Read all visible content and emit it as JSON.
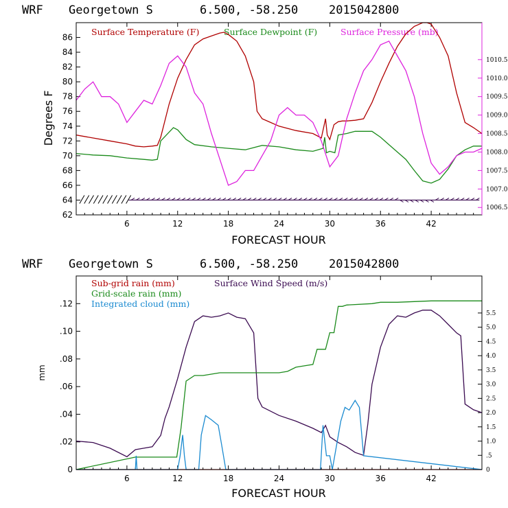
{
  "chart_data": [
    {
      "type": "line",
      "header": {
        "model": "WRF",
        "station": "Georgetown S",
        "coords": "6.500, -58.250",
        "run": "2015042800"
      },
      "xlabel": "FORECAST HOUR",
      "ylabel": "Degrees F",
      "xlim": [
        0,
        48
      ],
      "ylim": [
        62,
        88
      ],
      "y2lim": [
        1006.3,
        1011.5
      ],
      "x_ticks": [
        "6",
        "12",
        "18",
        "24",
        "30",
        "36",
        "42"
      ],
      "y_ticks": [
        "62",
        "64",
        "66",
        "68",
        "70",
        "72",
        "74",
        "76",
        "78",
        "80",
        "82",
        "84",
        "86"
      ],
      "y2_ticks": [
        "1006.5",
        "1007.0",
        "1007.5",
        "1008.0",
        "1008.5",
        "1009.0",
        "1009.5",
        "1010.0",
        "1010.5"
      ],
      "colors": {
        "temperature": "#b00000",
        "dewpoint": "#1a8a1a",
        "pressure": "#dd22dd",
        "wind": "#3a0a50"
      },
      "series": [
        {
          "name": "Surface Temperature (F)",
          "key": "temperature",
          "axis": "left",
          "x": [
            0,
            2,
            4,
            6,
            7,
            8,
            9,
            9.6,
            10,
            11,
            12,
            13,
            14,
            15,
            16,
            17,
            17.5,
            18,
            19,
            20,
            21,
            21.4,
            22,
            23,
            24,
            26,
            28,
            29,
            29.5,
            29.7,
            30,
            30.5,
            31,
            31.5,
            32,
            33,
            34,
            35,
            36,
            37,
            38,
            39,
            40,
            41,
            41.5,
            42,
            43,
            44,
            45,
            46,
            47,
            48
          ],
          "values": [
            72.8,
            72.4,
            72,
            71.6,
            71.3,
            71.2,
            71.3,
            71.4,
            72.5,
            77,
            80.5,
            83,
            85,
            85.8,
            86.2,
            86.6,
            86.7,
            86.4,
            85.5,
            83.5,
            80,
            76,
            75,
            74.5,
            74,
            73.4,
            73,
            72.4,
            75,
            72.8,
            72.2,
            74.2,
            74.6,
            74.7,
            74.7,
            74.8,
            75,
            77.2,
            80,
            82.5,
            84.8,
            86.5,
            87.5,
            88,
            88,
            87.8,
            86,
            83.5,
            78.5,
            74.5,
            73.8,
            73
          ]
        },
        {
          "name": "Surface Dewpoint (F)",
          "key": "dewpoint",
          "axis": "left",
          "x": [
            0,
            2,
            4,
            6,
            8,
            9,
            9.6,
            10,
            11,
            11.5,
            12,
            13,
            14,
            16,
            18,
            20,
            22,
            24,
            26,
            28,
            29.2,
            29.4,
            29.6,
            30,
            30.6,
            31,
            32,
            33,
            34,
            35,
            36,
            37,
            38,
            39,
            40,
            41,
            42,
            43,
            44,
            45,
            46,
            47,
            48
          ],
          "values": [
            70.3,
            70.1,
            70,
            69.7,
            69.5,
            69.4,
            69.5,
            72,
            73.2,
            73.8,
            73.5,
            72.2,
            71.5,
            71.2,
            71,
            70.8,
            71.4,
            71.2,
            70.8,
            70.6,
            71,
            72.5,
            70.4,
            70.6,
            70.4,
            72.8,
            73,
            73.3,
            73.3,
            73.3,
            72.5,
            71.5,
            70.5,
            69.5,
            68,
            66.6,
            66.3,
            66.8,
            68.2,
            70,
            70.8,
            71.3,
            71.3
          ]
        },
        {
          "name": "Surface Pressure (mb)",
          "key": "pressure",
          "axis": "right",
          "x": [
            0,
            1,
            2,
            3,
            4,
            5,
            6,
            7,
            8,
            9,
            10,
            11,
            12,
            13,
            14,
            15,
            16,
            17,
            18,
            19,
            20,
            21,
            22,
            23,
            24,
            25,
            26,
            27,
            28,
            29,
            30,
            31,
            32,
            33,
            34,
            35,
            36,
            37,
            38,
            39,
            40,
            41,
            42,
            43,
            44,
            45,
            46,
            47,
            48
          ],
          "values": [
            1009.4,
            1009.7,
            1009.9,
            1009.5,
            1009.5,
            1009.3,
            1008.8,
            1009.1,
            1009.4,
            1009.3,
            1009.8,
            1010.4,
            1010.6,
            1010.3,
            1009.6,
            1009.3,
            1008.5,
            1007.8,
            1007.1,
            1007.2,
            1007.5,
            1007.5,
            1007.9,
            1008.3,
            1009.0,
            1009.2,
            1009.0,
            1009.0,
            1008.8,
            1008.3,
            1007.6,
            1007.9,
            1008.9,
            1009.6,
            1010.2,
            1010.5,
            1010.9,
            1011.0,
            1010.6,
            1010.2,
            1009.5,
            1008.5,
            1007.7,
            1007.4,
            1007.6,
            1007.9,
            1008.0,
            1008.0,
            1008.1
          ]
        }
      ],
      "wind_barbs": {
        "y": 64,
        "description": "wind barbs"
      }
    },
    {
      "type": "line",
      "header": {
        "model": "WRF",
        "station": "Georgetown S",
        "coords": "6.500, -58.250",
        "run": "2015042800"
      },
      "xlabel": "FORECAST HOUR",
      "ylabel": "mm",
      "xlim": [
        0,
        48
      ],
      "ylim": [
        0,
        0.14
      ],
      "y2lim": [
        0,
        6.8
      ],
      "x_ticks": [
        "6",
        "12",
        "18",
        "24",
        "30",
        "36",
        "42"
      ],
      "y_ticks": [
        "0",
        ".02",
        ".04",
        ".06",
        ".08",
        ".10",
        ".12"
      ],
      "y2_ticks": [
        "0",
        ".5",
        "1.0",
        "1.5",
        "2.0",
        "2.5",
        "3.0",
        "3.5",
        "4.0",
        "4.5",
        "5.0",
        "5.5"
      ],
      "colors": {
        "subgrid": "#b00000",
        "gridscale": "#1a8a1a",
        "cloud": "#1a8ad0",
        "wind": "#3a0a50"
      },
      "series": [
        {
          "name": "Sub-grid rain (mm)",
          "key": "subgrid",
          "axis": "left",
          "x": [
            0,
            48
          ],
          "values": [
            0,
            0
          ]
        },
        {
          "name": "Surface Wind Speed (m/s)",
          "key": "wind",
          "axis": "right",
          "x": [
            0,
            2,
            4,
            6,
            7,
            8,
            9,
            10,
            10.5,
            11,
            12,
            13,
            14,
            15,
            16,
            17,
            18,
            19,
            20,
            21,
            21.5,
            22,
            24,
            26,
            28,
            29,
            29.5,
            30,
            31,
            32,
            33,
            34,
            34.5,
            35,
            36,
            37,
            38,
            39,
            40,
            41,
            42,
            43,
            44,
            45,
            45.5,
            46,
            47,
            48
          ],
          "values": [
            1.0,
            0.95,
            0.75,
            0.45,
            0.7,
            0.75,
            0.8,
            1.2,
            1.8,
            2.2,
            3.2,
            4.3,
            5.2,
            5.4,
            5.35,
            5.4,
            5.5,
            5.35,
            5.3,
            4.8,
            2.5,
            2.2,
            1.9,
            1.7,
            1.45,
            1.3,
            1.55,
            1.15,
            0.95,
            0.8,
            0.6,
            0.5,
            1.6,
            3.0,
            4.3,
            5.1,
            5.4,
            5.35,
            5.5,
            5.6,
            5.6,
            5.4,
            5.1,
            4.8,
            4.7,
            2.3,
            2.1,
            2.0
          ]
        },
        {
          "name": "Grid-scale rain (mm)",
          "key": "gridscale",
          "axis": "left",
          "x": [
            0,
            7,
            11.9,
            12.4,
            13,
            14,
            15,
            16,
            17,
            18,
            24,
            25,
            26,
            27,
            28,
            28.5,
            29,
            29.5,
            30,
            30.5,
            31,
            31.5,
            32,
            35,
            36,
            38,
            42,
            48
          ],
          "values": [
            0,
            0.009,
            0.009,
            0.03,
            0.064,
            0.068,
            0.068,
            0.069,
            0.07,
            0.07,
            0.07,
            0.071,
            0.074,
            0.075,
            0.076,
            0.087,
            0.087,
            0.087,
            0.099,
            0.099,
            0.118,
            0.118,
            0.119,
            0.12,
            0.121,
            0.121,
            0.122,
            0.122
          ]
        },
        {
          "name": "Integrated cloud (mm)",
          "key": "cloud",
          "axis": "left",
          "x": [
            0,
            7,
            7.1,
            7.2,
            12,
            12.3,
            12.6,
            12.8,
            13,
            14.5,
            14.8,
            15.3,
            16,
            16.8,
            17.2,
            17.7,
            18,
            24,
            28.9,
            29.2,
            29.6,
            30,
            30.3,
            31.3,
            31.8,
            32.3,
            33,
            33.5,
            34,
            48
          ],
          "values": [
            0,
            0,
            0.01,
            0,
            0,
            0.01,
            0.025,
            0.01,
            0,
            0,
            0.025,
            0.039,
            0.036,
            0.032,
            0.018,
            0,
            0,
            0,
            0,
            0.032,
            0.01,
            0.01,
            0,
            0.035,
            0.045,
            0.043,
            0.05,
            0.045,
            0.01,
            0
          ]
        }
      ]
    }
  ]
}
